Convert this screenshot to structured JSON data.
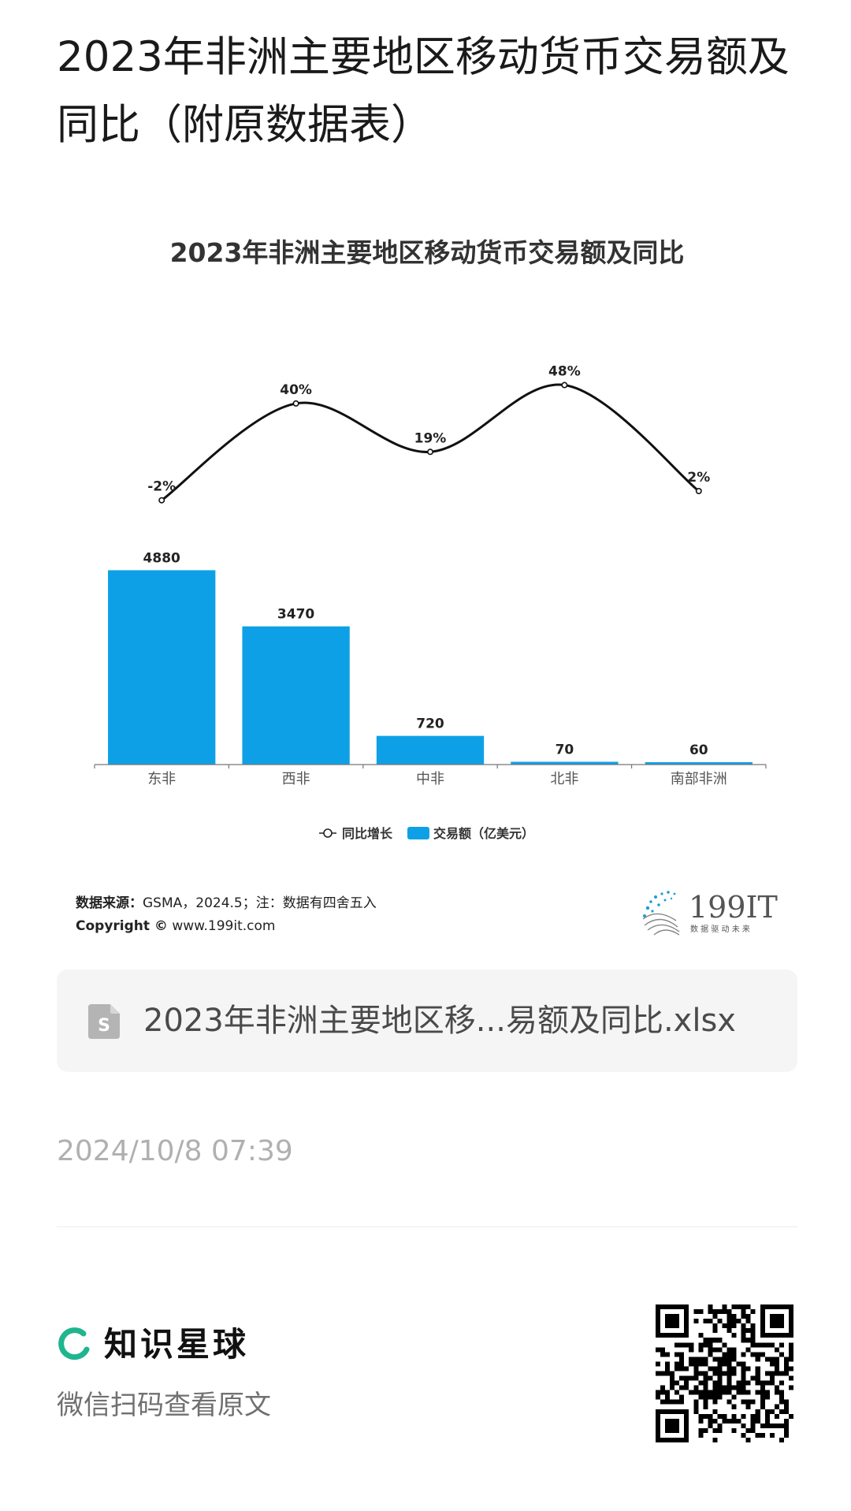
{
  "page": {
    "title": "2023年非洲主要地区移动货币交易额及同比（附原数据表）"
  },
  "chart_data": {
    "type": "bar",
    "title": "2023年非洲主要地区移动货币交易额及同比",
    "categories": [
      "东非",
      "西非",
      "中非",
      "北非",
      "南部非洲"
    ],
    "series": [
      {
        "name": "交易额（亿美元）",
        "type": "bar",
        "values": [
          4880,
          3470,
          720,
          70,
          60
        ],
        "value_labels": [
          "4880",
          "3470",
          "720",
          "70",
          "60"
        ],
        "color": "#0ea0e6"
      },
      {
        "name": "同比增长",
        "type": "line",
        "values": [
          -2,
          40,
          19,
          48,
          2
        ],
        "value_labels": [
          "-2%",
          "40%",
          "19%",
          "48%",
          "2%"
        ],
        "color": "#111111"
      }
    ],
    "ylim": [
      0,
      9500
    ],
    "y2lim": [
      -50,
      80
    ],
    "grid": false,
    "legend_position": "bottom",
    "legend": [
      "同比增长",
      "交易额（亿美元）"
    ]
  },
  "source": {
    "label": "数据来源：",
    "text": "GSMA，2024.5；注：数据有四舍五入",
    "copyright_label": "Copyright ©",
    "copyright_url": "www.199it.com"
  },
  "logo": {
    "name": "199IT",
    "tagline": "数 据 驱 动 未 来"
  },
  "file": {
    "name": "2023年非洲主要地区移...易额及同比.xlsx",
    "icon": "spreadsheet-icon"
  },
  "timestamp": "2024/10/8 07:39",
  "footer": {
    "brand": "知识星球",
    "brand_color": "#1fb58f",
    "scan_text": "微信扫码查看原文"
  }
}
